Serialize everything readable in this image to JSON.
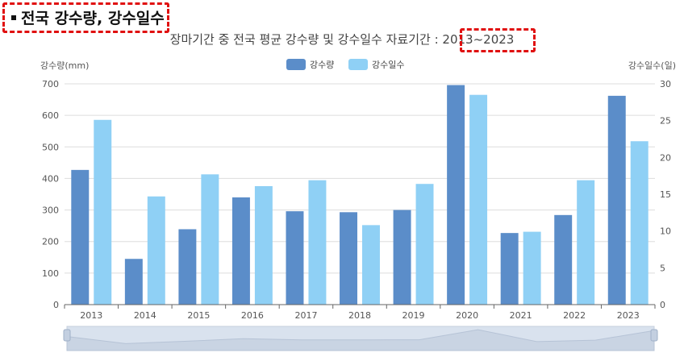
{
  "header": {
    "title": "전국 강수량, 강수일수"
  },
  "subtitle": {
    "prefix": "장마기간 중 전국 평균 강수량 및 강수일수 자료기간 : ",
    "range": "2013~2023"
  },
  "colors": {
    "precip": "#5b8dc9",
    "days": "#8fd0f5",
    "grid": "#dddddd",
    "axis": "#666666",
    "highlight": "#e01010"
  },
  "chart_data": {
    "type": "bar",
    "title": "장마기간 중 전국 평균 강수량 및 강수일수 자료기간 : 2013~2023",
    "categories": [
      "2013",
      "2014",
      "2015",
      "2016",
      "2017",
      "2018",
      "2019",
      "2020",
      "2021",
      "2022",
      "2023"
    ],
    "series": [
      {
        "name": "강수량",
        "axis": "left",
        "values": [
          427,
          145,
          239,
          340,
          296,
          293,
          300,
          696,
          227,
          284,
          662
        ]
      },
      {
        "name": "강수일수",
        "axis": "right",
        "values": [
          25.1,
          14.7,
          17.7,
          16.1,
          16.9,
          10.8,
          16.4,
          28.5,
          9.9,
          16.9,
          22.2
        ]
      }
    ],
    "ylabel_left": "강수량(mm)",
    "ylabel_right": "강수일수(일)",
    "ylim_left": [
      0,
      700
    ],
    "ylim_right": [
      0,
      30
    ],
    "yticks_left": [
      "0",
      "100",
      "200",
      "300",
      "400",
      "500",
      "600",
      "700"
    ],
    "yticks_right": [
      "0",
      "5",
      "10",
      "15",
      "20",
      "25",
      "30"
    ],
    "grid": true,
    "legend": "top-center"
  }
}
